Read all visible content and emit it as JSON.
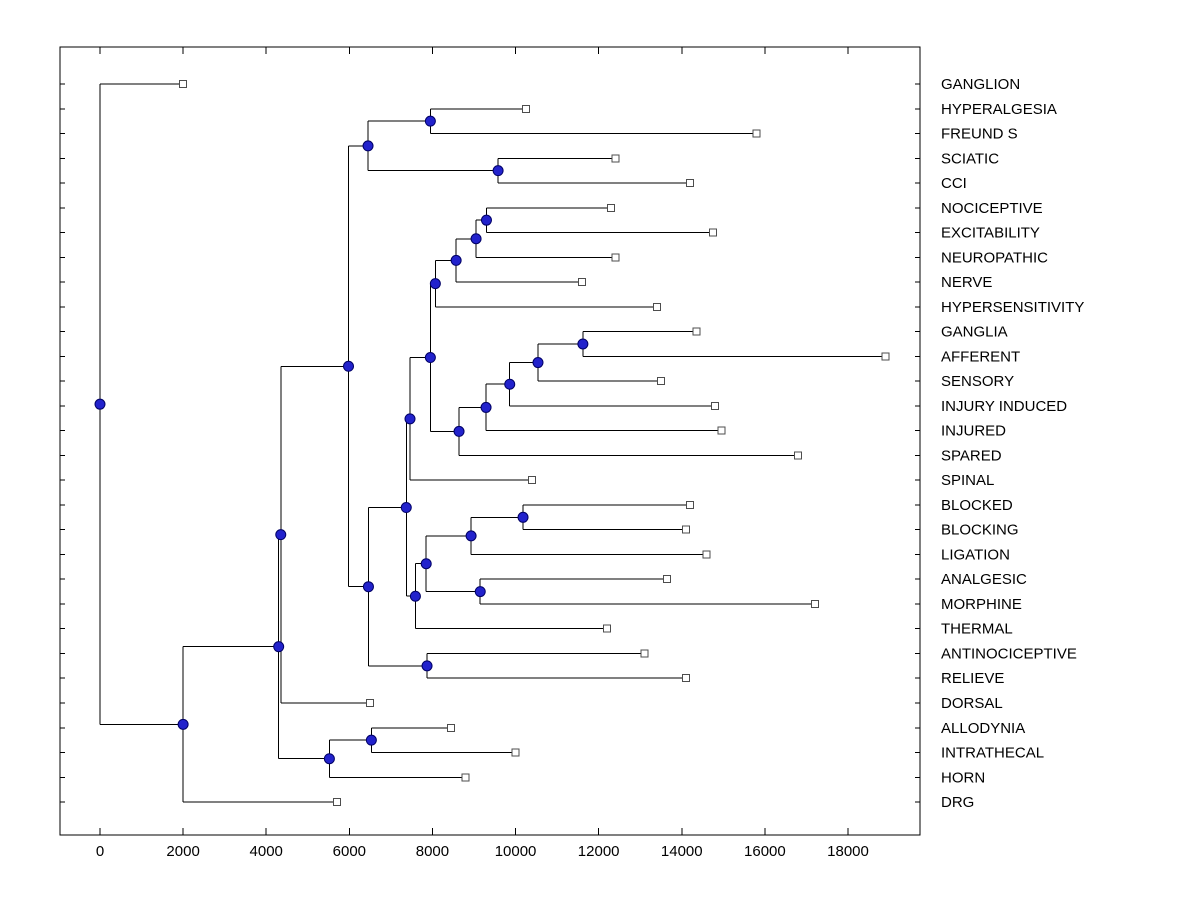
{
  "figure": {
    "background": "#FFFFFF"
  },
  "chart_data": {
    "type": "dendrogram",
    "orientation": "horizontal",
    "title": "",
    "xlabel": "",
    "ylabel": "",
    "legend": "none",
    "grid": false,
    "x_axis": {
      "ticks": [
        0,
        2000,
        4000,
        6000,
        8000,
        10000,
        12000,
        14000,
        16000,
        18000
      ],
      "range": [
        -950,
        19750
      ]
    },
    "leaves": [
      {
        "label": "GANGLION",
        "value": 2000
      },
      {
        "label": "HYPERALGESIA",
        "value": 10250
      },
      {
        "label": "FREUND S",
        "value": 15800
      },
      {
        "label": "SCIATIC",
        "value": 12400
      },
      {
        "label": "CCI",
        "value": 14200
      },
      {
        "label": "NOCICEPTIVE",
        "value": 12300
      },
      {
        "label": "EXCITABILITY",
        "value": 14750
      },
      {
        "label": "NEUROPATHIC",
        "value": 12400
      },
      {
        "label": "NERVE",
        "value": 11600
      },
      {
        "label": "HYPERSENSITIVITY",
        "value": 13400
      },
      {
        "label": "GANGLIA",
        "value": 14350
      },
      {
        "label": "AFFERENT",
        "value": 18900
      },
      {
        "label": "SENSORY",
        "value": 13500
      },
      {
        "label": "INJURY INDUCED",
        "value": 14800
      },
      {
        "label": "INJURED",
        "value": 14950
      },
      {
        "label": "SPARED",
        "value": 16800
      },
      {
        "label": "SPINAL",
        "value": 10400
      },
      {
        "label": "BLOCKED",
        "value": 14200
      },
      {
        "label": "BLOCKING",
        "value": 14100
      },
      {
        "label": "LIGATION",
        "value": 14600
      },
      {
        "label": "ANALGESIC",
        "value": 13650
      },
      {
        "label": "MORPHINE",
        "value": 17200
      },
      {
        "label": "THERMAL",
        "value": 12200
      },
      {
        "label": "ANTINOCICEPTIVE",
        "value": 13100
      },
      {
        "label": "RELIEVE",
        "value": 14100
      },
      {
        "label": "DORSAL",
        "value": 6500
      },
      {
        "label": "ALLODYNIA",
        "value": 8450
      },
      {
        "label": "INTRATHECAL",
        "value": 10000
      },
      {
        "label": "HORN",
        "value": 8800
      },
      {
        "label": "DRG",
        "value": 5700
      }
    ],
    "nodes": [
      {
        "id": "N2",
        "children": [
          "L1",
          "L2"
        ],
        "value": 7950
      },
      {
        "id": "N3",
        "children": [
          "L3",
          "L4"
        ],
        "value": 9580
      },
      {
        "id": "N1",
        "children": [
          "N2",
          "N3"
        ],
        "value": 6450
      },
      {
        "id": "N4",
        "children": [
          "L5",
          "L6"
        ],
        "value": 9300
      },
      {
        "id": "N5",
        "children": [
          "N4",
          "L7"
        ],
        "value": 9050
      },
      {
        "id": "N6",
        "children": [
          "N5",
          "L8"
        ],
        "value": 8570
      },
      {
        "id": "N7",
        "children": [
          "N6",
          "L9"
        ],
        "value": 8070
      },
      {
        "id": "N8",
        "children": [
          "L10",
          "L11"
        ],
        "value": 11620
      },
      {
        "id": "N9",
        "children": [
          "N8",
          "L12"
        ],
        "value": 10540
      },
      {
        "id": "N10",
        "children": [
          "N9",
          "L13"
        ],
        "value": 9860
      },
      {
        "id": "N11",
        "children": [
          "N10",
          "L14"
        ],
        "value": 9290
      },
      {
        "id": "N12",
        "children": [
          "N11",
          "L15"
        ],
        "value": 8640
      },
      {
        "id": "N13",
        "children": [
          "N7",
          "N12"
        ],
        "value": 7950
      },
      {
        "id": "N14",
        "children": [
          "N13",
          "L16"
        ],
        "value": 7460
      },
      {
        "id": "N15",
        "children": [
          "L17",
          "L18"
        ],
        "value": 10180
      },
      {
        "id": "N16",
        "children": [
          "N15",
          "L19"
        ],
        "value": 8930
      },
      {
        "id": "N17",
        "children": [
          "L20",
          "L21"
        ],
        "value": 9150
      },
      {
        "id": "N18",
        "children": [
          "N16",
          "N17"
        ],
        "value": 7850
      },
      {
        "id": "N19",
        "children": [
          "N18",
          "L22"
        ],
        "value": 7590
      },
      {
        "id": "N20",
        "children": [
          "N14",
          "N19"
        ],
        "value": 7370
      },
      {
        "id": "N21",
        "children": [
          "L23",
          "L24"
        ],
        "value": 7870
      },
      {
        "id": "N22",
        "children": [
          "N20",
          "N21"
        ],
        "value": 6460
      },
      {
        "id": "N23",
        "children": [
          "N1",
          "N22"
        ],
        "value": 5980
      },
      {
        "id": "N24",
        "children": [
          "N23",
          "L25"
        ],
        "value": 4350
      },
      {
        "id": "N25",
        "children": [
          "L26",
          "L27"
        ],
        "value": 6530
      },
      {
        "id": "N26",
        "children": [
          "N25",
          "L28"
        ],
        "value": 5520
      },
      {
        "id": "N27",
        "children": [
          "N24",
          "N26"
        ],
        "value": 4300
      },
      {
        "id": "N28",
        "children": [
          "N27",
          "L29"
        ],
        "value": 2000
      },
      {
        "id": "N29",
        "children": [
          "L0",
          "N28"
        ],
        "value": 0
      }
    ],
    "root_id": "N29",
    "colors": {
      "branch": "#000000",
      "axis": "#000000",
      "node_marker_fill": "#2222CC",
      "node_marker_edge": "#000066",
      "leaf_marker_fill": "#FFFFFF",
      "leaf_marker_edge": "#4D4D4D",
      "text": "#000000",
      "background": "#FFFFFF"
    }
  }
}
